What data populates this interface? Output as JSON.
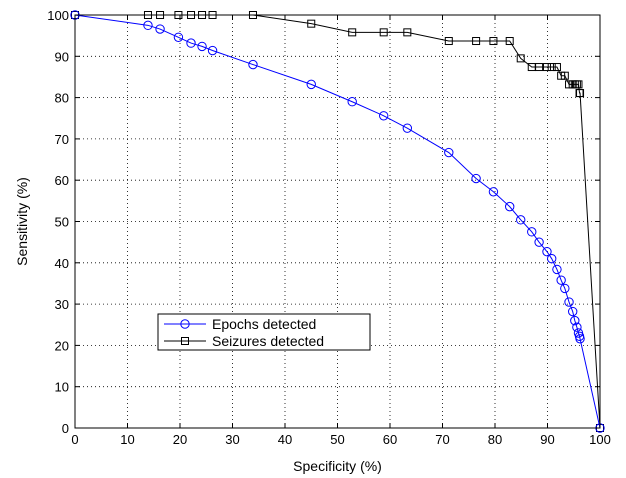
{
  "chart_data": {
    "type": "line",
    "title": "",
    "xlabel": "Specificity (%)",
    "ylabel": "Sensitivity (%)",
    "xlim": [
      0,
      100
    ],
    "ylim": [
      0,
      100
    ],
    "xticks": [
      0,
      10,
      20,
      30,
      40,
      50,
      60,
      70,
      80,
      90,
      100
    ],
    "yticks": [
      0,
      10,
      20,
      30,
      40,
      50,
      60,
      70,
      80,
      90,
      100
    ],
    "grid": true,
    "legend_position": "lower-left",
    "series": [
      {
        "name": "Epochs detected",
        "color": "#0000ff",
        "marker": "circle",
        "points": [
          [
            0,
            100
          ],
          [
            13.9,
            97.5
          ],
          [
            16.2,
            96.6
          ],
          [
            19.7,
            94.6
          ],
          [
            22.1,
            93.2
          ],
          [
            24.2,
            92.4
          ],
          [
            26.2,
            91.4
          ],
          [
            33.9,
            88.0
          ],
          [
            45.0,
            83.2
          ],
          [
            52.8,
            79.0
          ],
          [
            58.8,
            75.6
          ],
          [
            63.3,
            72.6
          ],
          [
            71.2,
            66.7
          ],
          [
            76.4,
            60.4
          ],
          [
            79.7,
            57.2
          ],
          [
            82.8,
            53.6
          ],
          [
            84.9,
            50.4
          ],
          [
            87.0,
            47.5
          ],
          [
            88.4,
            45.0
          ],
          [
            89.9,
            42.7
          ],
          [
            90.8,
            41.0
          ],
          [
            91.8,
            38.4
          ],
          [
            92.6,
            35.8
          ],
          [
            93.3,
            33.8
          ],
          [
            94.1,
            30.5
          ],
          [
            94.8,
            28.2
          ],
          [
            95.2,
            26.0
          ],
          [
            95.6,
            24.4
          ],
          [
            95.9,
            23.0
          ],
          [
            96.1,
            22.2
          ],
          [
            96.2,
            21.6
          ],
          [
            100,
            0
          ]
        ]
      },
      {
        "name": "Seizures detected",
        "color": "#000000",
        "marker": "square",
        "points": [
          [
            0,
            100
          ],
          [
            13.9,
            100
          ],
          [
            16.2,
            100
          ],
          [
            19.7,
            100
          ],
          [
            22.1,
            100
          ],
          [
            24.2,
            100
          ],
          [
            26.2,
            100
          ],
          [
            33.9,
            100
          ],
          [
            45.0,
            97.9
          ],
          [
            52.8,
            95.8
          ],
          [
            58.8,
            95.8
          ],
          [
            63.3,
            95.8
          ],
          [
            71.2,
            93.7
          ],
          [
            76.4,
            93.7
          ],
          [
            79.7,
            93.7
          ],
          [
            82.8,
            93.7
          ],
          [
            84.9,
            89.5
          ],
          [
            87.0,
            87.4
          ],
          [
            88.4,
            87.4
          ],
          [
            89.9,
            87.4
          ],
          [
            90.8,
            87.4
          ],
          [
            91.8,
            87.4
          ],
          [
            92.6,
            85.3
          ],
          [
            93.3,
            85.3
          ],
          [
            94.1,
            83.2
          ],
          [
            94.8,
            83.2
          ],
          [
            95.2,
            83.2
          ],
          [
            95.6,
            83.2
          ],
          [
            95.9,
            83.2
          ],
          [
            96.1,
            81.1
          ],
          [
            96.2,
            81.1
          ],
          [
            100,
            0
          ]
        ]
      }
    ]
  }
}
